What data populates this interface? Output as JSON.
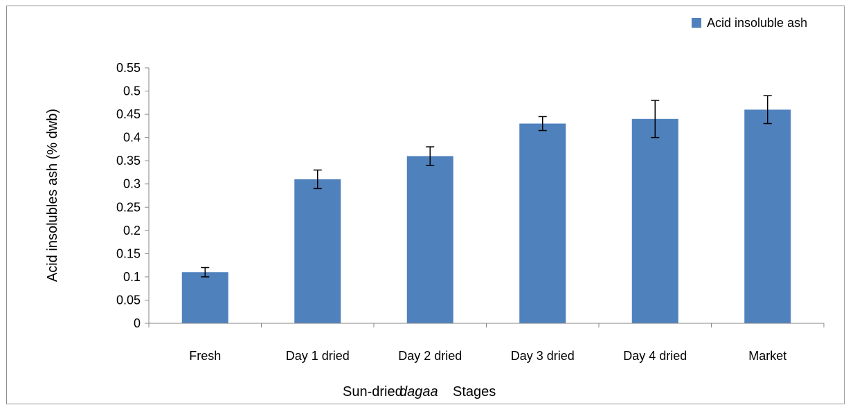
{
  "chart_data": {
    "type": "bar",
    "categories": [
      "Fresh",
      "Day 1 dried",
      "Day 2 dried",
      "Day 3 dried",
      "Day 4 dried",
      "Market"
    ],
    "series": [
      {
        "name": "Acid insoluble ash",
        "values": [
          0.11,
          0.31,
          0.36,
          0.43,
          0.44,
          0.46
        ],
        "error": [
          0.01,
          0.02,
          0.02,
          0.015,
          0.04,
          0.03
        ],
        "color": "#4f81bd"
      }
    ],
    "ylabel": "Acid insolubles ash (% dwb)",
    "xlabel_parts": [
      "Sun-dried",
      "dagaa",
      "Stages"
    ],
    "ylim": [
      0,
      0.55
    ],
    "yticks": [
      "0",
      "0.05",
      "0.1",
      "0.15",
      "0.2",
      "0.25",
      "0.3",
      "0.35",
      "0.4",
      "0.45",
      "0.5",
      "0.55"
    ],
    "grid": false,
    "legend_position": "top-right"
  }
}
